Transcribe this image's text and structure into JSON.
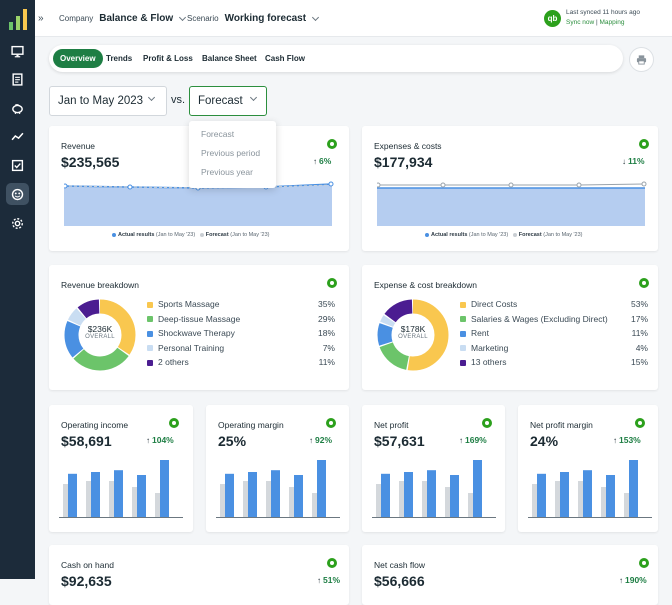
{
  "topbar": {
    "expand_icon": "»",
    "company_label": "Company",
    "company_value": "Balance & Flow",
    "scenario_label": "Scenario",
    "scenario_value": "Working forecast",
    "qb_badge": "qb",
    "sync_status": "Last synced 11 hours ago",
    "sync_now": "Sync now",
    "mapping": "Mapping",
    "separator": "|"
  },
  "tabs": [
    "Overview",
    "Trends",
    "Profit & Loss",
    "Balance Sheet",
    "Cash Flow"
  ],
  "period_select": "Jan to May 2023",
  "vs_label": "vs.",
  "compare_select": "Forecast",
  "compare_options": [
    "Forecast",
    "Previous period",
    "Previous year"
  ],
  "revenue": {
    "title": "Revenue",
    "value": "$235,565",
    "delta": "6%",
    "delta_arrow": "↑",
    "legend_actual_b": "Actual results",
    "legend_actual": "(Jan to May '23)",
    "legend_forecast_b": "Forecast",
    "legend_forecast": "(Jan to May '23)"
  },
  "expenses": {
    "title": "Expenses & costs",
    "value": "$177,934",
    "delta": "11%",
    "delta_arrow": "↓",
    "legend_actual_b": "Actual results",
    "legend_actual": "(Jan to May '23)",
    "legend_forecast_b": "Forecast",
    "legend_forecast": "(Jan to May '23)"
  },
  "revenue_breakdown": {
    "title": "Revenue breakdown",
    "center_value": "$236K",
    "center_label": "OVERALL",
    "items": [
      {
        "label": "Sports Massage",
        "pct": "35%",
        "value": 35,
        "color": "#f9c74f"
      },
      {
        "label": "Deep-tissue Massage",
        "pct": "29%",
        "value": 29,
        "color": "#6cc46a"
      },
      {
        "label": "Shockwave Therapy",
        "pct": "18%",
        "value": 18,
        "color": "#4a90e2"
      },
      {
        "label": "Personal Training",
        "pct": "7%",
        "value": 7,
        "color": "#c9ddf2"
      },
      {
        "label": "2 others",
        "pct": "11%",
        "value": 11,
        "color": "#4b1d91"
      }
    ]
  },
  "expense_breakdown": {
    "title": "Expense & cost breakdown",
    "center_value": "$178K",
    "center_label": "OVERALL",
    "items": [
      {
        "label": "Direct Costs",
        "pct": "53%",
        "value": 53,
        "color": "#f9c74f"
      },
      {
        "label": "Salaries & Wages (Excluding Direct)",
        "pct": "17%",
        "value": 17,
        "color": "#6cc46a"
      },
      {
        "label": "Rent",
        "pct": "11%",
        "value": 11,
        "color": "#4a90e2"
      },
      {
        "label": "Marketing",
        "pct": "4%",
        "value": 4,
        "color": "#c9ddf2"
      },
      {
        "label": "13 others",
        "pct": "15%",
        "value": 15,
        "color": "#4b1d91"
      }
    ]
  },
  "kpis": [
    {
      "title": "Operating income",
      "value": "$58,691",
      "delta": "104%",
      "delta_arrow": "↑"
    },
    {
      "title": "Operating margin",
      "value": "25%",
      "delta": "92%",
      "delta_arrow": "↑"
    },
    {
      "title": "Net profit",
      "value": "$57,631",
      "delta": "169%",
      "delta_arrow": "↑"
    },
    {
      "title": "Net profit margin",
      "value": "24%",
      "delta": "153%",
      "delta_arrow": "↑"
    }
  ],
  "bottom": [
    {
      "title": "Cash on hand",
      "value": "$92,635",
      "delta": "51%",
      "delta_arrow": "↑"
    },
    {
      "title": "Net cash flow",
      "value": "$56,666",
      "delta": "190%",
      "delta_arrow": "↑"
    }
  ],
  "colors": {
    "brand_green": "#1e7e44",
    "qb_green": "#2ca01c",
    "actual": "#4a90e2",
    "forecast": "#c9ced3",
    "rail": "#1c2b3a"
  }
}
